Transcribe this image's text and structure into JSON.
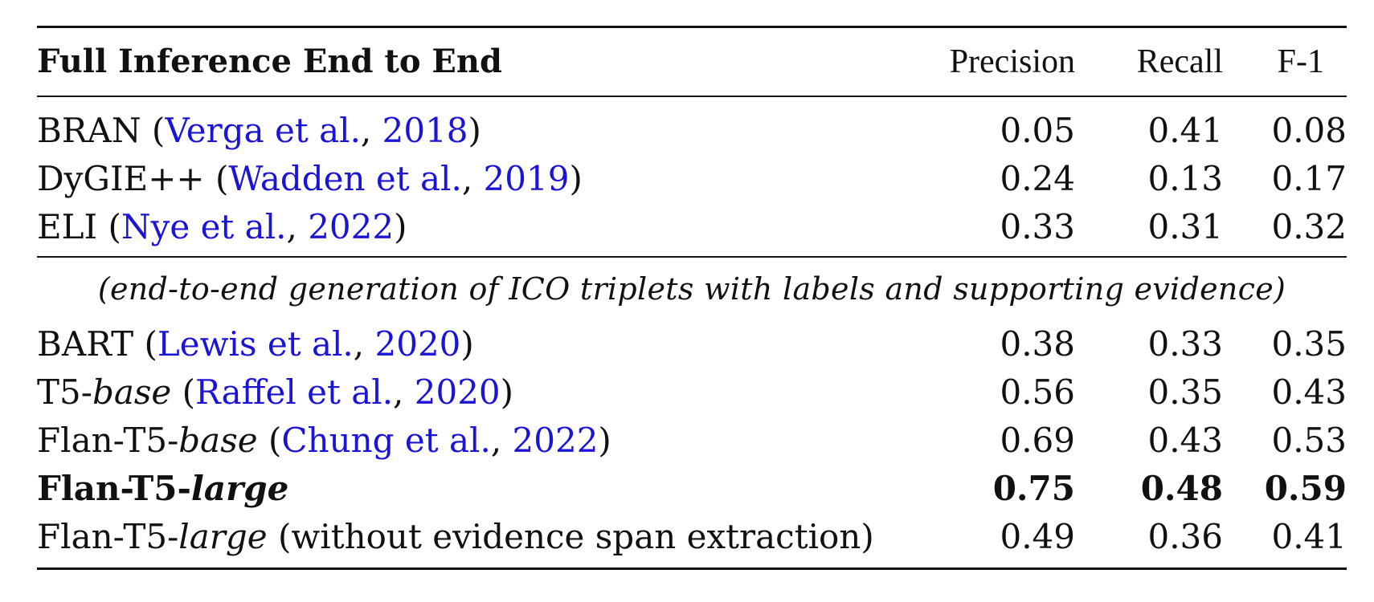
{
  "header": {
    "title": "Full Inference End to End",
    "columns": [
      "Precision",
      "Recall",
      "F-1"
    ]
  },
  "section1": [
    {
      "model": "BRAN",
      "cite_text": "Verga et al.",
      "cite_year": "2018",
      "precision": "0.05",
      "recall": "0.41",
      "f1": "0.08"
    },
    {
      "model": "DyGIE++",
      "cite_text": "Wadden et al.",
      "cite_year": "2019",
      "precision": "0.24",
      "recall": "0.13",
      "f1": "0.17"
    },
    {
      "model": "ELI",
      "cite_text": "Nye et al.",
      "cite_year": "2022",
      "precision": "0.33",
      "recall": "0.31",
      "f1": "0.32"
    }
  ],
  "section_note": "(end-to-end generation of ICO triplets with labels and supporting evidence)",
  "section2": [
    {
      "model_prefix": "BART",
      "model_italic": "",
      "cite_text": "Lewis et al.",
      "cite_year": "2020",
      "precision": "0.38",
      "recall": "0.33",
      "f1": "0.35"
    },
    {
      "model_prefix": "T5-",
      "model_italic": "base",
      "cite_text": "Raffel et al.",
      "cite_year": "2020",
      "precision": "0.56",
      "recall": "0.35",
      "f1": "0.43"
    },
    {
      "model_prefix": "Flan-T5-",
      "model_italic": "base",
      "cite_text": "Chung et al.",
      "cite_year": "2022",
      "precision": "0.69",
      "recall": "0.43",
      "f1": "0.53"
    },
    {
      "model_prefix": "Flan-T5-",
      "model_italic": "large",
      "precision": "0.75",
      "recall": "0.48",
      "f1": "0.59"
    },
    {
      "model_prefix": "Flan-T5-",
      "model_italic": "large",
      "suffix": "(without evidence span extraction)",
      "precision": "0.49",
      "recall": "0.36",
      "f1": "0.41"
    }
  ],
  "colors": {
    "citation": "#1a14d6",
    "text": "#111111"
  }
}
